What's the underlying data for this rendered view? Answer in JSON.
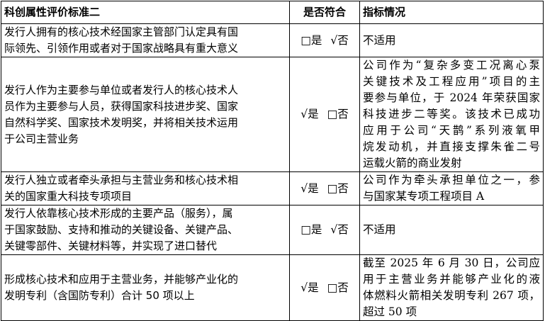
{
  "headers": [
    "科创属性评价标准二",
    "是否符合",
    "指标情况"
  ],
  "rows": [
    {
      "criterion": [
        "发行人拥有的核心技术经国家主管部门认定具有国",
        "际领先、引领作用或者对于国家战略具有重大意义"
      ],
      "yes": "□是",
      "no": "√否",
      "status": [
        "不适用"
      ]
    },
    {
      "criterion": [
        "发行人作为主要参与单位或者发行人的核心技术人",
        "员作为主要参与人员，获得国家科技进步奖、国家",
        "自然科学奖、国家技术发明奖，并将相关技术运用",
        "于公司主营业务"
      ],
      "yes": "√是",
      "no": "□否",
      "status": [
        "公司作为“复杂多变工况离心泵",
        "关键技术及工程应用”项目的主",
        "要参与单位，于 2024 年荣获国家",
        "科技进步二等奖。该技术已成功",
        "应用于公司“天鹊”系列液氧甲",
        "烷发动机，并直接支撑朱雀二号",
        "运载火箭的商业发射"
      ]
    },
    {
      "criterion": [
        "发行人独立或者牵头承担与主营业务和核心技术相",
        "关的国家重大科技专项项目"
      ],
      "yes": "√是",
      "no": "□否",
      "status": [
        "公司作为牵头承担单位之一，参",
        "与国家某专项工程项目 A"
      ]
    },
    {
      "criterion": [
        "发行人依靠核心技术形成的主要产品（服务），属",
        "于国家鼓励、支持和推动的关键设备、关键产品、",
        "关键零部件、关键材料等，并实现了进口替代"
      ],
      "yes": "□是",
      "no": "√否",
      "status": [
        "不适用"
      ]
    },
    {
      "criterion": [
        "形成核心技术和应用于主营业务，并能够产业化的",
        "发明专利（含国防专利）合计 50 项以上"
      ],
      "yes": "√是",
      "no": "□否",
      "status": [
        "截至 2025 年 6 月 30 日，公司应",
        "用于主营业务并能够产业化的液",
        "体燃料火箭相关发明专利 267 项，",
        "超过 50 项"
      ]
    }
  ]
}
